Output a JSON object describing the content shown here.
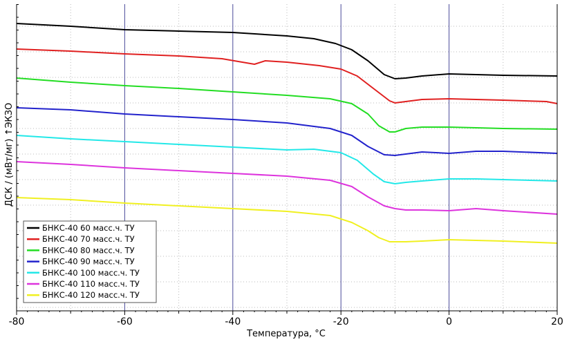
{
  "chart_data": {
    "type": "line",
    "xlabel": "Температура, °C",
    "ylabel": "ДСК / (мВт/мг) ↑ЭКЗО",
    "xlim": [
      -80,
      20
    ],
    "x_ticks": [
      -80,
      -60,
      -40,
      -20,
      0,
      20
    ],
    "x_tick_labels": [
      "-80",
      "-60",
      "-40",
      "-20",
      "0",
      "20"
    ],
    "y_ticks_labeled": false,
    "grid": {
      "vertical_major": true,
      "vertical_minor_dotted": true,
      "horizontal_dotted": true
    },
    "legend_position": "bottom-left",
    "series": [
      {
        "name": "БНКС-40 60 масс.ч. ТУ",
        "color": "#000000",
        "points": [
          [
            -80,
            34
          ],
          [
            -70,
            38
          ],
          [
            -60,
            43
          ],
          [
            -50,
            45
          ],
          [
            -40,
            47
          ],
          [
            -30,
            52
          ],
          [
            -25,
            56
          ],
          [
            -21,
            63
          ],
          [
            -18,
            72
          ],
          [
            -15,
            88
          ],
          [
            -12,
            108
          ],
          [
            -10,
            114
          ],
          [
            -8,
            113
          ],
          [
            -5,
            110
          ],
          [
            0,
            107
          ],
          [
            5,
            108
          ],
          [
            10,
            109
          ],
          [
            20,
            110
          ]
        ]
      },
      {
        "name": "БНКС-40 70 масс.ч. ТУ",
        "color": "#e02020",
        "points": [
          [
            -80,
            71
          ],
          [
            -70,
            74
          ],
          [
            -60,
            78
          ],
          [
            -50,
            81
          ],
          [
            -42,
            85
          ],
          [
            -36,
            93
          ],
          [
            -34,
            88
          ],
          [
            -30,
            90
          ],
          [
            -24,
            95
          ],
          [
            -20,
            100
          ],
          [
            -17,
            110
          ],
          [
            -14,
            128
          ],
          [
            -11,
            146
          ],
          [
            -10,
            149
          ],
          [
            -8,
            147
          ],
          [
            -5,
            144
          ],
          [
            0,
            143
          ],
          [
            5,
            144
          ],
          [
            10,
            145
          ],
          [
            18,
            147
          ],
          [
            20,
            150
          ]
        ]
      },
      {
        "name": "БНКС-40 80 масс.ч. ТУ",
        "color": "#22dd22",
        "points": [
          [
            -80,
            113
          ],
          [
            -70,
            119
          ],
          [
            -60,
            124
          ],
          [
            -50,
            128
          ],
          [
            -40,
            133
          ],
          [
            -30,
            138
          ],
          [
            -22,
            143
          ],
          [
            -18,
            150
          ],
          [
            -15,
            165
          ],
          [
            -13,
            182
          ],
          [
            -11,
            191
          ],
          [
            -10,
            191
          ],
          [
            -8,
            186
          ],
          [
            -5,
            184
          ],
          [
            0,
            184
          ],
          [
            5,
            185
          ],
          [
            10,
            186
          ],
          [
            20,
            187
          ]
        ]
      },
      {
        "name": "БНКС-40 90 масс.ч. ТУ",
        "color": "#2222cc",
        "points": [
          [
            -80,
            156
          ],
          [
            -70,
            159
          ],
          [
            -60,
            165
          ],
          [
            -50,
            169
          ],
          [
            -40,
            173
          ],
          [
            -30,
            178
          ],
          [
            -22,
            186
          ],
          [
            -18,
            196
          ],
          [
            -15,
            212
          ],
          [
            -12,
            224
          ],
          [
            -10,
            225
          ],
          [
            -8,
            223
          ],
          [
            -5,
            220
          ],
          [
            0,
            222
          ],
          [
            5,
            219
          ],
          [
            10,
            219
          ],
          [
            20,
            222
          ]
        ]
      },
      {
        "name": "БНКС-40 100 масс.ч. ТУ",
        "color": "#22e8e8",
        "points": [
          [
            -80,
            196
          ],
          [
            -70,
            201
          ],
          [
            -60,
            205
          ],
          [
            -50,
            209
          ],
          [
            -40,
            213
          ],
          [
            -30,
            217
          ],
          [
            -25,
            216
          ],
          [
            -20,
            221
          ],
          [
            -17,
            232
          ],
          [
            -14,
            252
          ],
          [
            -12,
            263
          ],
          [
            -10,
            266
          ],
          [
            -8,
            264
          ],
          [
            -5,
            262
          ],
          [
            0,
            259
          ],
          [
            5,
            259
          ],
          [
            10,
            260
          ],
          [
            20,
            262
          ]
        ]
      },
      {
        "name": "БНКС-40 110 масс.ч. ТУ",
        "color": "#dd33dd",
        "points": [
          [
            -80,
            234
          ],
          [
            -70,
            238
          ],
          [
            -60,
            243
          ],
          [
            -50,
            247
          ],
          [
            -40,
            251
          ],
          [
            -30,
            255
          ],
          [
            -22,
            261
          ],
          [
            -18,
            270
          ],
          [
            -15,
            285
          ],
          [
            -12,
            298
          ],
          [
            -10,
            302
          ],
          [
            -8,
            304
          ],
          [
            -5,
            304
          ],
          [
            0,
            305
          ],
          [
            5,
            302
          ],
          [
            10,
            305
          ],
          [
            20,
            310
          ]
        ]
      },
      {
        "name": "БНКС-40 120 масс.ч. ТУ",
        "color": "#f0f020",
        "points": [
          [
            -80,
            286
          ],
          [
            -70,
            289
          ],
          [
            -60,
            294
          ],
          [
            -50,
            298
          ],
          [
            -40,
            302
          ],
          [
            -30,
            306
          ],
          [
            -22,
            312
          ],
          [
            -18,
            322
          ],
          [
            -15,
            334
          ],
          [
            -13,
            344
          ],
          [
            -11,
            350
          ],
          [
            -8,
            350
          ],
          [
            -5,
            349
          ],
          [
            0,
            347
          ],
          [
            5,
            348
          ],
          [
            10,
            349
          ],
          [
            20,
            352
          ]
        ]
      }
    ]
  }
}
